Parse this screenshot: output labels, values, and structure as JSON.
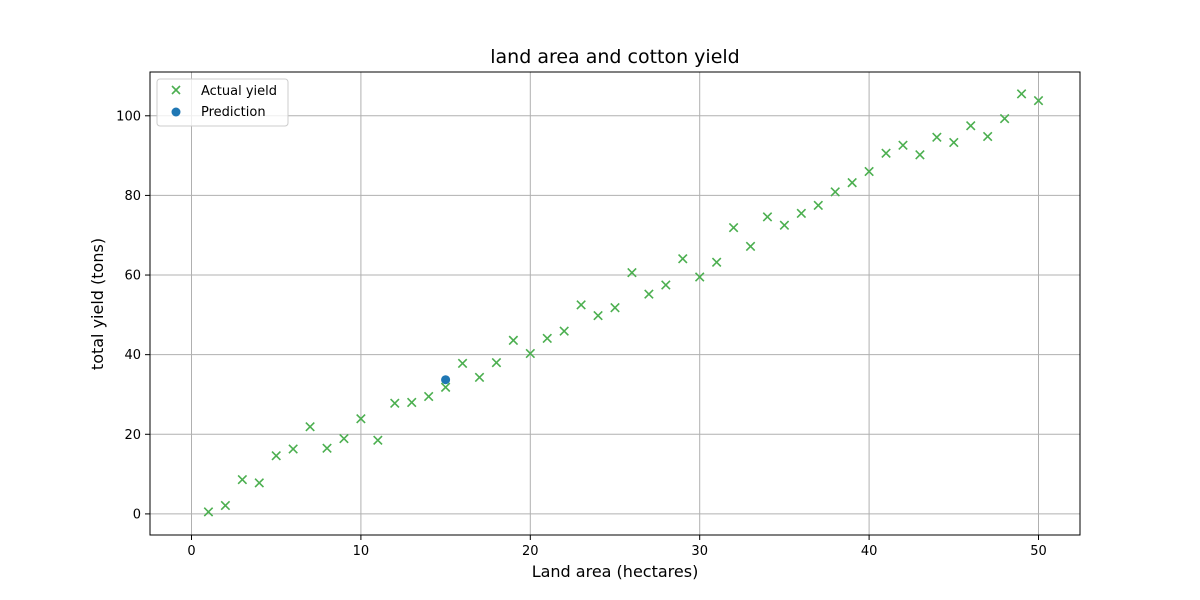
{
  "chart_data": {
    "type": "scatter",
    "title": "land area and cotton yield",
    "xlabel": "Land area (hectares)",
    "ylabel": "total yield (tons)",
    "xlim": [
      -2.45,
      52.45
    ],
    "ylim": [
      -5.3,
      111.0
    ],
    "xticks": [
      0,
      10,
      20,
      30,
      40,
      50
    ],
    "yticks": [
      0,
      20,
      40,
      60,
      80,
      100
    ],
    "grid": true,
    "legend_position": "top-left",
    "series": [
      {
        "name": "Actual yield",
        "marker": "x",
        "color": "#4caf50",
        "x": [
          1,
          2,
          3,
          4,
          5,
          6,
          7,
          8,
          9,
          10,
          11,
          12,
          13,
          14,
          15,
          16,
          17,
          18,
          19,
          20,
          21,
          22,
          23,
          24,
          25,
          26,
          27,
          28,
          29,
          30,
          31,
          32,
          33,
          34,
          35,
          36,
          37,
          38,
          39,
          40,
          41,
          42,
          43,
          44,
          45,
          46,
          47,
          48,
          49,
          50
        ],
        "y": [
          0.5,
          2.1,
          8.6,
          7.8,
          14.6,
          16.3,
          21.9,
          16.5,
          18.9,
          23.9,
          18.5,
          27.8,
          28.0,
          29.5,
          31.8,
          37.8,
          34.3,
          38.0,
          43.6,
          40.3,
          44.1,
          45.9,
          52.5,
          49.8,
          51.8,
          60.6,
          55.2,
          57.5,
          64.1,
          59.5,
          63.2,
          71.9,
          67.2,
          74.6,
          72.5,
          75.5,
          77.5,
          80.9,
          83.2,
          86.0,
          90.6,
          92.6,
          90.2,
          94.6,
          93.3,
          97.5,
          94.8,
          99.3,
          105.5,
          103.8
        ]
      },
      {
        "name": "Prediction",
        "marker": "o",
        "color": "#1f77b4",
        "x": [
          15
        ],
        "y": [
          33.7
        ]
      }
    ]
  }
}
